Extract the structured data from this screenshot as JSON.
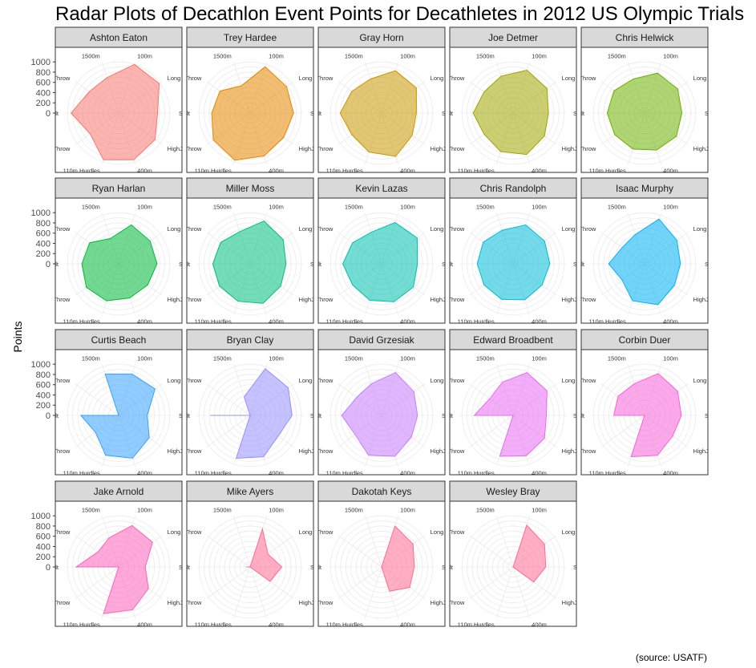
{
  "chart_data": {
    "type": "radar",
    "title": "Radar Plots of Decathlon Event Points for Decathletes in 2012 US Olympic Trials",
    "ylabel": "Points",
    "caption": "(source: USATF)",
    "rlim": [
      0,
      1050
    ],
    "r_ticks": [
      "0",
      "200",
      "400",
      "600",
      "800",
      "1000"
    ],
    "r_tick_values": [
      0,
      200,
      400,
      600,
      800,
      1000
    ],
    "grid": true,
    "events": [
      "100m",
      "Long Jump",
      "Shot Put",
      "HighJump",
      "400m",
      "110m Hurdles",
      "Discus Throw",
      "Pole Vault",
      "Javelin Throw",
      "1500m"
    ],
    "athletes": [
      {
        "name": "Ashton Eaton",
        "color": "#F8766D",
        "values": [
          1000,
          980,
          760,
          880,
          960,
          960,
          690,
          930,
          710,
          730
        ]
      },
      {
        "name": "Trey Hardee",
        "color": "#E58700",
        "values": [
          950,
          880,
          850,
          810,
          880,
          970,
          890,
          750,
          730,
          560
        ]
      },
      {
        "name": "Gray Horn",
        "color": "#C99800",
        "values": [
          870,
          840,
          680,
          740,
          890,
          800,
          720,
          810,
          720,
          700
        ]
      },
      {
        "name": "Joe Detmer",
        "color": "#A3A500",
        "values": [
          880,
          820,
          690,
          760,
          850,
          790,
          700,
          780,
          700,
          760
        ]
      },
      {
        "name": "Chris Helwick",
        "color": "#6BB100",
        "values": [
          820,
          800,
          730,
          770,
          760,
          740,
          720,
          730,
          740,
          700
        ]
      },
      {
        "name": "Ryan Harlan",
        "color": "#00BA38",
        "values": [
          800,
          760,
          750,
          700,
          700,
          760,
          780,
          720,
          700,
          520
        ]
      },
      {
        "name": "Miller Moss",
        "color": "#00BF7D",
        "values": [
          880,
          800,
          700,
          740,
          810,
          770,
          740,
          730,
          710,
          660
        ]
      },
      {
        "name": "Kevin Lazas",
        "color": "#00C0AF",
        "values": [
          850,
          860,
          700,
          770,
          780,
          750,
          700,
          760,
          700,
          650
        ]
      },
      {
        "name": "Chris Randolph",
        "color": "#00BCD8",
        "values": [
          800,
          760,
          720,
          700,
          740,
          730,
          700,
          700,
          720,
          690
        ]
      },
      {
        "name": "Isaac Murphy",
        "color": "#00B0F6",
        "values": [
          920,
          780,
          700,
          720,
          840,
          760,
          540,
          700,
          540,
          600
        ]
      },
      {
        "name": "Curtis Beach",
        "color": "#35A2FF",
        "values": [
          850,
          880,
          560,
          740,
          880,
          820,
          560,
          740,
          0,
          850
        ]
      },
      {
        "name": "Bryan Clay",
        "color": "#9590FF",
        "values": [
          960,
          920,
          820,
          680,
          850,
          880,
          0,
          780,
          0,
          380
        ]
      },
      {
        "name": "David Grzesiak",
        "color": "#C77CFF",
        "values": [
          880,
          780,
          700,
          720,
          840,
          820,
          640,
          780,
          600,
          650
        ]
      },
      {
        "name": "Edward Broadbent",
        "color": "#E76BF3",
        "values": [
          880,
          820,
          650,
          760,
          830,
          840,
          0,
          760,
          560,
          680
        ]
      },
      {
        "name": "Corbin Duer",
        "color": "#FA62DB",
        "values": [
          860,
          800,
          720,
          680,
          820,
          850,
          0,
          600,
          640,
          650
        ]
      },
      {
        "name": "Jake Arnold",
        "color": "#FF62BC",
        "values": [
          850,
          820,
          520,
          720,
          880,
          960,
          0,
          830,
          500,
          600
        ]
      },
      {
        "name": "Mike Ayers",
        "color": "#FF6C91",
        "values": [
          780,
          430,
          620,
          480,
          0,
          0,
          0,
          80,
          0,
          0
        ]
      },
      {
        "name": "Dakotah Keys",
        "color": "#FF6C91",
        "values": [
          840,
          760,
          640,
          680,
          500,
          0,
          0,
          0,
          0,
          0
        ]
      },
      {
        "name": "Wesley Bray",
        "color": "#FF6C91",
        "values": [
          860,
          760,
          640,
          500,
          0,
          0,
          0,
          0,
          0,
          0
        ]
      }
    ]
  }
}
